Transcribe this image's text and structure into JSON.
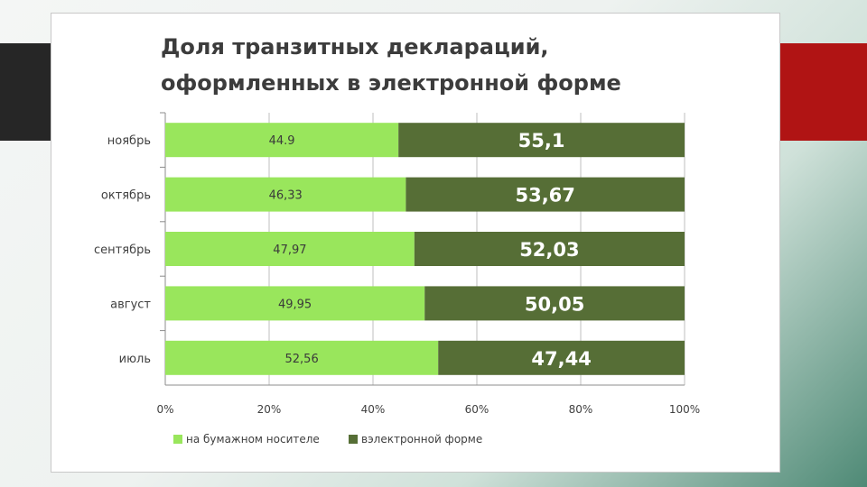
{
  "colors": {
    "paper": "#99e65c",
    "electronic": "#566e36",
    "accent_left": "#262626",
    "accent_right": "#b01414"
  },
  "chart_data": {
    "type": "bar",
    "orientation": "horizontal",
    "stacked": true,
    "title": [
      "Доля транзитных деклараций,",
      "оформленных в электронной форме"
    ],
    "categories": [
      "ноябрь",
      "октябрь",
      "сентябрь",
      "август",
      "июль"
    ],
    "series": [
      {
        "name": "на бумажном носителе",
        "values": [
          44.9,
          46.33,
          47.97,
          49.95,
          52.56
        ],
        "labels": [
          "44.9",
          "46,33",
          "47,97",
          "49,95",
          "52,56"
        ],
        "color": "#99e65c"
      },
      {
        "name": "вэлектронной форме",
        "values": [
          55.1,
          53.67,
          52.03,
          50.05,
          47.44
        ],
        "labels": [
          "55,1",
          "53,67",
          "52,03",
          "50,05",
          "47,44"
        ],
        "color": "#566e36"
      }
    ],
    "xlim": [
      0,
      100
    ],
    "xticks": [
      "0%",
      "20%",
      "40%",
      "60%",
      "80%",
      "100%"
    ],
    "grid": true,
    "legend": "bottom"
  }
}
